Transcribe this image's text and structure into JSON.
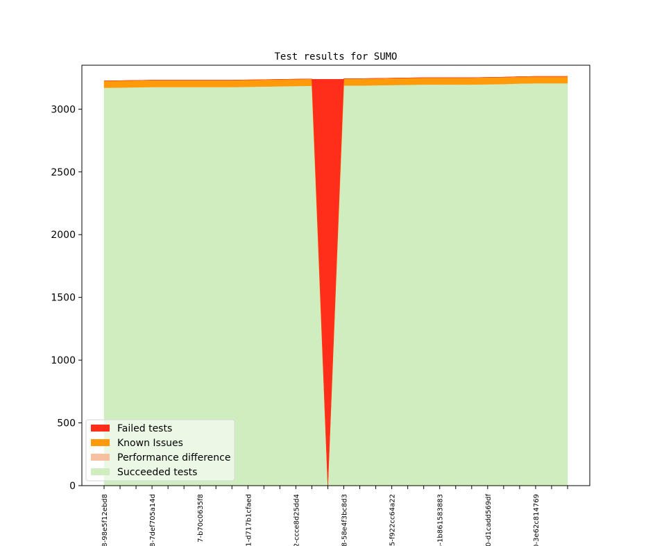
{
  "chart_data": {
    "type": "area",
    "title": "Test results for SUMO",
    "xlabel": "",
    "ylabel": "",
    "ylim": [
      0,
      3350
    ],
    "yticks": [
      0,
      500,
      1000,
      1500,
      2000,
      2500,
      3000
    ],
    "xtick_labels": [
      "8-98e5f12ebd8",
      "8-7def705a14d",
      "7-b70c0635f8",
      "1-d717b1cfaed",
      "2-ccce8d25dd4",
      "8-58e4f3bc8d3",
      "5-f922cc64a22",
      "5-1b861583883",
      "0-d1cadd569df",
      "0-3e62c814769"
    ],
    "points": 30,
    "series": [
      {
        "name": "Succeeded tests",
        "color": "#d0edc0",
        "values": [
          3170,
          3172,
          3174,
          3176,
          3176,
          3176,
          3176,
          3176,
          3176,
          3178,
          3180,
          3182,
          3184,
          3186,
          0,
          3188,
          3188,
          3190,
          3192,
          3194,
          3196,
          3196,
          3196,
          3196,
          3198,
          3200,
          3204,
          3206,
          3206,
          3206
        ]
      },
      {
        "name": "Performance difference",
        "color": "#f7c0a0",
        "values": [
          0,
          0,
          0,
          0,
          0,
          0,
          0,
          0,
          0,
          0,
          0,
          0,
          0,
          0,
          0,
          0,
          0,
          0,
          0,
          0,
          0,
          0,
          0,
          0,
          0,
          0,
          0,
          0,
          0,
          0
        ]
      },
      {
        "name": "Known Issues",
        "color": "#ff9a0a",
        "values": [
          55,
          55,
          55,
          55,
          55,
          55,
          55,
          55,
          55,
          55,
          55,
          55,
          55,
          55,
          0,
          55,
          55,
          55,
          55,
          55,
          55,
          55,
          55,
          55,
          55,
          55,
          55,
          55,
          55,
          55
        ]
      },
      {
        "name": "Failed tests",
        "color": "#ff2e1a",
        "values": [
          0,
          0,
          0,
          0,
          0,
          0,
          0,
          0,
          0,
          0,
          0,
          0,
          0,
          0,
          250,
          0,
          0,
          0,
          0,
          0,
          0,
          0,
          0,
          0,
          0,
          0,
          0,
          0,
          0,
          0
        ]
      }
    ],
    "spike": {
      "index": 14,
      "top": 3245
    },
    "legend": {
      "placement": "lower-left",
      "entries": [
        {
          "label": "Failed tests",
          "color": "#ff2e1a"
        },
        {
          "label": "Known Issues",
          "color": "#ff9a0a"
        },
        {
          "label": "Performance difference",
          "color": "#f7c0a0"
        },
        {
          "label": "Succeeded tests",
          "color": "#d0edc0"
        }
      ]
    }
  }
}
